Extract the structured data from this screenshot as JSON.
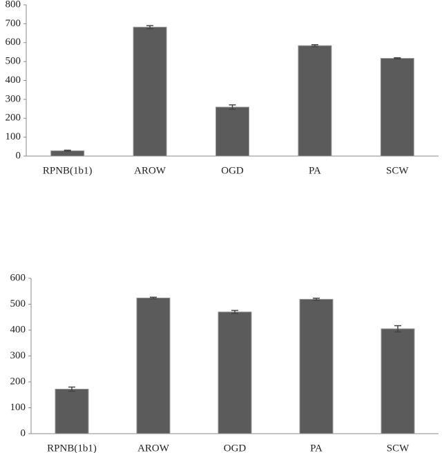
{
  "chart_data": [
    {
      "type": "bar",
      "categories": [
        "RPNB(1b1)",
        "AROW",
        "OGD",
        "PA",
        "SCW"
      ],
      "values": [
        28,
        682,
        259,
        584,
        517
      ],
      "errors": [
        3,
        8,
        12,
        5,
        3
      ],
      "color": "#5b5b5b",
      "ylim": [
        0,
        800
      ],
      "yticks": [
        0,
        100,
        200,
        300,
        400,
        500,
        600,
        700,
        800
      ],
      "grid": false
    },
    {
      "type": "bar",
      "categories": [
        "RPNB(1b1)",
        "AROW",
        "OGD",
        "PA",
        "SCW"
      ],
      "values": [
        172,
        524,
        470,
        519,
        405
      ],
      "errors": [
        8,
        3,
        6,
        4,
        12
      ],
      "color": "#5b5b5b",
      "ylim": [
        0,
        600
      ],
      "yticks": [
        0,
        100,
        200,
        300,
        400,
        500,
        600
      ],
      "grid": false
    }
  ]
}
